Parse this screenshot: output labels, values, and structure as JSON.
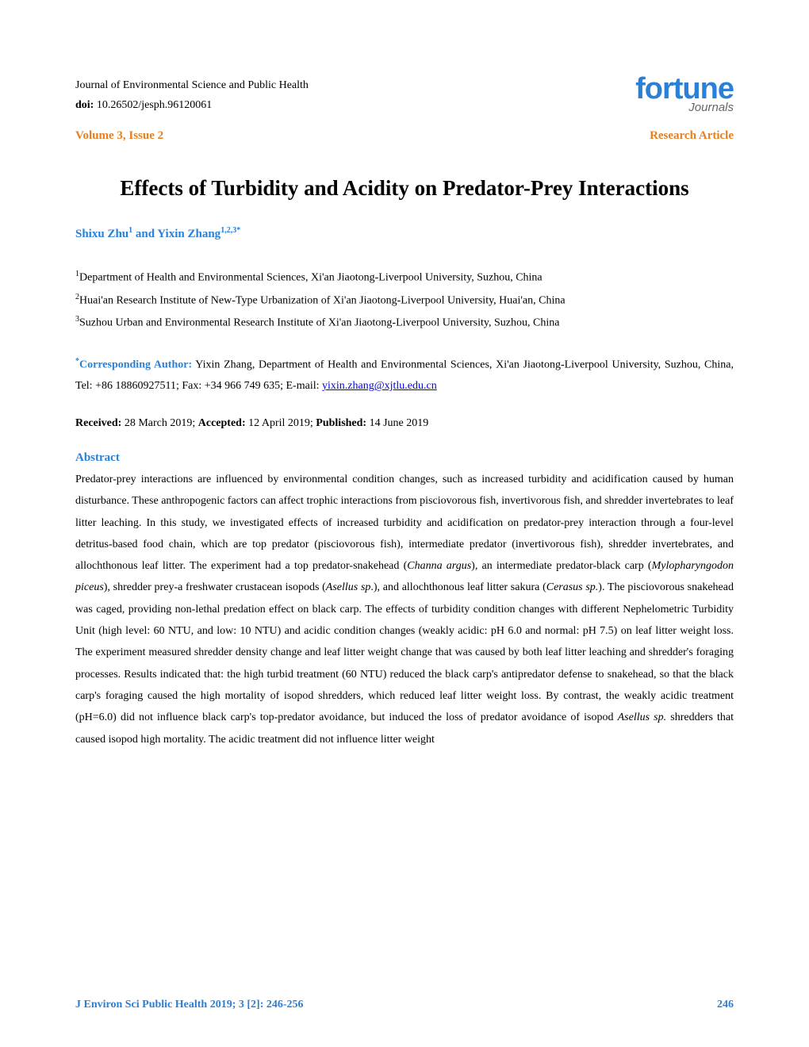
{
  "header": {
    "journal": "Journal of Environmental Science and Public Health",
    "doi_label": "doi:",
    "doi": "10.26502/jesph.96120061",
    "logo_main": "fortune",
    "logo_sub": "Journals"
  },
  "meta": {
    "volume": "Volume 3, Issue 2",
    "article_type": "Research Article"
  },
  "title": "Effects of Turbidity and Acidity on Predator-Prey Interactions",
  "authors": {
    "author1_name": "Shixu Zhu",
    "author1_sup": "1",
    "author_and": " and ",
    "author2_name": "Yixin Zhang",
    "author2_sup": "1,2,3*"
  },
  "affiliations": {
    "a1_sup": "1",
    "a1": "Department of Health and Environmental Sciences, Xi'an Jiaotong-Liverpool University, Suzhou, China",
    "a2_sup": "2",
    "a2": "Huai'an Research Institute of New-Type Urbanization of Xi'an Jiaotong-Liverpool University, Huai'an, China",
    "a3_sup": "3",
    "a3": "Suzhou Urban and Environmental Research Institute of Xi'an Jiaotong-Liverpool University, Suzhou, China"
  },
  "corresponding": {
    "sup": "*",
    "label": "Corresponding Author:",
    "text": " Yixin Zhang, Department of Health and Environmental Sciences, Xi'an Jiaotong-Liverpool University, Suzhou, China, Tel: +86 18860927511; Fax: +34 966 749 635; E-mail: ",
    "email": "yixin.zhang@xjtlu.edu.cn"
  },
  "dates": {
    "received_label": "Received:",
    "received": " 28 March 2019; ",
    "accepted_label": "Accepted:",
    "accepted": " 12 April 2019; ",
    "published_label": "Published:",
    "published": " 14 June 2019"
  },
  "abstract": {
    "heading": "Abstract",
    "p1": "Predator-prey interactions are influenced by environmental condition changes, such as increased turbidity and acidification caused by human disturbance. These anthropogenic factors can affect trophic interactions from pisciovorous fish, invertivorous fish, and shredder invertebrates to leaf litter leaching. In this study, we investigated effects of increased turbidity and acidification on predator-prey interaction through a four-level detritus-based food chain, which are top predator (pisciovorous fish), intermediate predator (invertivorous fish), shredder invertebrates, and allochthonous leaf litter. The experiment had a top predator-snakehead (",
    "s1": "Channa argus",
    "p2": "), an intermediate predator-black carp (",
    "s2": "Mylopharyngodon piceus",
    "p3": "), shredder prey-a freshwater crustacean isopods (",
    "s3": "Asellus sp",
    "p4": ".), and allochthonous leaf litter sakura (",
    "s4": "Cerasus sp.",
    "p5": "). The pisciovorous snakehead was caged, providing non-lethal predation effect on black carp. The effects of turbidity condition changes with different Nephelometric Turbidity Unit (high level: 60 NTU, and low: 10 NTU) and acidic condition changes (weakly acidic: pH 6.0 and normal: pH 7.5) on leaf litter weight loss. The experiment measured shredder density change and leaf litter weight change that was caused by both leaf litter leaching and shredder's foraging processes. Results indicated that: the high turbid treatment (60 NTU) reduced the black carp's antipredator defense to snakehead, so that the black carp's foraging caused the high mortality of isopod shredders, which reduced leaf litter weight loss. By contrast, the weakly acidic treatment (pH=6.0) did not influence black carp's top-predator avoidance, but induced the loss of predator avoidance of isopod ",
    "s5": "Asellus sp.",
    "p6": " shredders that caused isopod high mortality. The acidic treatment did not influence litter weight"
  },
  "footer": {
    "citation": "J Environ Sci Public Health 2019; 3 [2]: 246-256",
    "page": "246"
  },
  "colors": {
    "accent_orange": "#e67e22",
    "accent_blue": "#2980d6",
    "link_blue": "#0000ee",
    "text": "#000000",
    "background": "#ffffff"
  }
}
